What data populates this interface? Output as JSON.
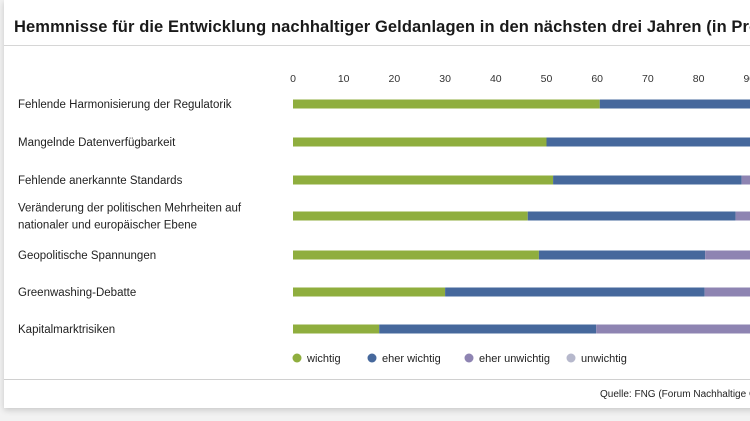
{
  "title": "Hemmnisse für die Entwicklung nachhaltiger Geldanlagen in den nächsten drei Jahren (in Prozent)",
  "source": "Quelle: FNG (Forum Nachhaltige Geldanlagen)",
  "colors": {
    "wichtig": "#8fae3e",
    "eher_wichtig": "#46689c",
    "eher_unwichtig": "#8e84b2",
    "unwichtig": "#b6b8cc"
  },
  "chart_data": {
    "type": "bar",
    "orientation": "horizontal",
    "stacked": true,
    "title": "Hemmnisse für die Entwicklung nachhaltiger Geldanlagen in den nächsten drei Jahren (in Prozent)",
    "xlim": [
      0,
      100
    ],
    "xticks": [
      0,
      10,
      20,
      30,
      40,
      50,
      60,
      70,
      80,
      90
    ],
    "grid": false,
    "legend_position": "bottom",
    "categories": [
      [
        "Fehlende Harmonisierung der Regulatorik"
      ],
      [
        "Mangelnde Datenverfügbarkeit"
      ],
      [
        "Fehlende anerkannte Standards"
      ],
      [
        "Veränderung der politischen Mehrheiten auf",
        "nationaler und europäischer Ebene"
      ],
      [
        "Geopolitische Spannungen"
      ],
      [
        "Greenwashing-Debatte"
      ],
      [
        "Kapitalmarktrisiken"
      ]
    ],
    "series": [
      {
        "name": "wichtig",
        "color": "#8fae3e",
        "values": [
          60.5,
          50,
          51.3,
          46.3,
          48.5,
          30,
          17
        ]
      },
      {
        "name": "eher wichtig",
        "color": "#46689c",
        "values": [
          39.5,
          50,
          37.2,
          41,
          32.8,
          51.2,
          42.8
        ]
      },
      {
        "name": "eher unwichtig",
        "color": "#8e84b2",
        "values": [
          0,
          0,
          11.5,
          12.7,
          18.7,
          18.8,
          40.2
        ]
      },
      {
        "name": "unwichtig",
        "color": "#b6b8cc",
        "values": [
          0,
          0,
          0,
          0,
          0,
          0,
          0
        ]
      }
    ]
  }
}
